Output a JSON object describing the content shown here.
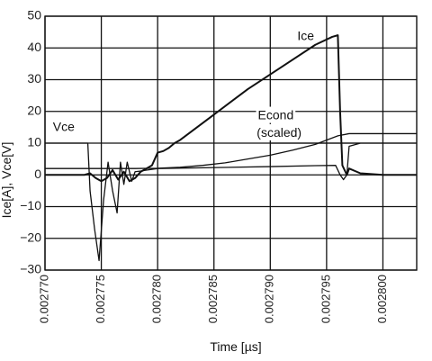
{
  "chart_data": {
    "type": "line",
    "xlabel": "Time [µs]",
    "ylabel": "Ice[A], Vce[V]",
    "xlim": [
      0.00277,
      0.002803
    ],
    "ylim": [
      -30,
      50
    ],
    "x_ticks": [
      0.00277,
      0.002775,
      0.00278,
      0.002785,
      0.00279,
      0.002795,
      0.0028
    ],
    "x_tick_labels": [
      "0.002770",
      "0.002775",
      "0.002780",
      "0.002785",
      "0.002790",
      "0.002795",
      "0.002800"
    ],
    "y_ticks": [
      -30,
      -20,
      -10,
      0,
      10,
      20,
      30,
      40,
      50
    ],
    "y_tick_labels": [
      "−30",
      "−20",
      "−10",
      "0",
      "10",
      "20",
      "30",
      "40",
      "50"
    ],
    "grid": true,
    "annotations": [
      {
        "text": "Vce",
        "x": 0.0027707,
        "y": 13.8
      },
      {
        "text": "Ice",
        "x": 0.0027924,
        "y": 42.5
      },
      {
        "text": "Econd",
        "x": 0.0027889,
        "y": 17.5
      },
      {
        "text": "(scaled)",
        "x": 0.0027888,
        "y": 12
      }
    ],
    "series": [
      {
        "x": [
          0.00277,
          0.002771,
          0.002772,
          0.002773,
          0.0027738,
          0.002774,
          0.0027744,
          0.0027748,
          0.0027752,
          0.0027756,
          0.002776,
          0.0027764,
          0.0027767,
          0.002777,
          0.0027773,
          0.0027777,
          0.002778,
          0.0027785,
          0.002779,
          0.00278,
          0.00279,
          0.002794,
          0.0027958,
          0.0027962,
          0.0027965,
          0.0027968,
          0.002797,
          0.002798,
          0.00279,
          0.002803
        ],
        "values": [
          10,
          10,
          10,
          10,
          10,
          -5,
          -17,
          -27,
          -8,
          4,
          -5,
          -12,
          4,
          -3,
          4,
          -2,
          1,
          1.2,
          1.5,
          2,
          2.6,
          2.9,
          3,
          0,
          -1.5,
          0,
          9,
          10,
          10,
          10
        ]
      },
      {
        "x": [
          0.00277,
          0.002771,
          0.002772,
          0.002773,
          0.0027735,
          0.002774,
          0.0027745,
          0.002775,
          0.0027755,
          0.002776,
          0.0027765,
          0.002777,
          0.0027775,
          0.002778,
          0.0027785,
          0.002779,
          0.0027795,
          0.00278,
          0.0027805,
          0.002781,
          0.0027815,
          0.002782,
          0.002785,
          0.002788,
          0.002791,
          0.002794,
          0.0027955,
          0.002796,
          0.0027962,
          0.0027964,
          0.0027968,
          0.002797,
          0.002798,
          0.0028,
          0.002803
        ],
        "values": [
          0,
          0,
          0,
          0,
          0,
          0.5,
          -1,
          -2,
          -1,
          1.5,
          -1.5,
          1,
          -2,
          -1,
          1,
          2,
          3,
          7,
          7.5,
          8.5,
          10,
          11,
          19,
          27,
          34,
          41,
          43.5,
          44,
          20,
          3,
          0,
          2,
          0.5,
          0,
          0
        ]
      },
      {
        "x": [
          0.00277,
          0.002773,
          0.002775,
          0.002778,
          0.00278,
          0.002782,
          0.002784,
          0.002786,
          0.002788,
          0.00279,
          0.002792,
          0.002794,
          0.002796,
          0.002797,
          0.0028,
          0.002803
        ],
        "values": [
          2,
          2,
          2,
          2,
          2.1,
          2.4,
          3,
          3.8,
          5,
          6.2,
          7.8,
          9.6,
          12.3,
          13,
          13,
          13
        ]
      }
    ]
  }
}
